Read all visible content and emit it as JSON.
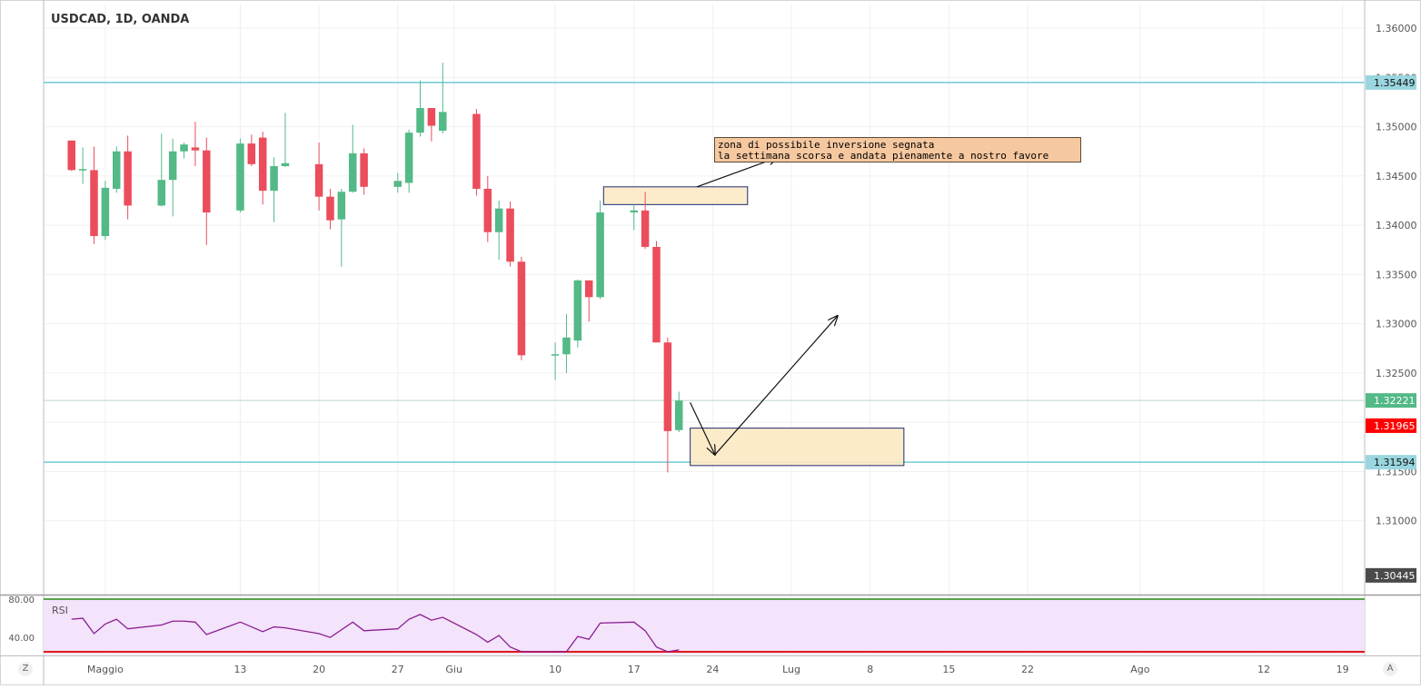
{
  "header": {
    "title": "USDCAD, 1D, OANDA"
  },
  "annotation": {
    "line1": "zona di possibile inversione segnata",
    "line2": "la settimana scorsa e andata pienamente a nostro favore"
  },
  "corner": {
    "left": "Z",
    "right": "A"
  },
  "rsi": {
    "label": "RSI",
    "ticks": [
      "80.00",
      "40.00"
    ],
    "values": [
      59,
      60,
      44,
      54,
      59,
      49,
      53,
      57,
      57,
      56,
      43,
      56,
      51,
      46,
      51,
      50,
      44,
      40,
      48,
      56,
      47,
      49,
      59,
      64,
      58,
      61,
      43,
      35,
      42,
      30,
      22,
      22,
      25,
      41,
      38,
      55,
      56,
      47,
      30,
      23,
      27
    ]
  },
  "colors": {
    "up": "#53b987",
    "down": "#eb4d5c",
    "hline": "#6ec9d6",
    "zone_fill": "#fce9c3",
    "zone_border": "#1f2a6e",
    "rsi_bg": "#f3e3fb",
    "rsi_line": "#8a1e8f"
  },
  "chart_data": {
    "type": "candlestick",
    "symbol": "USDCAD",
    "timeframe": "1D",
    "source": "OANDA",
    "ylim": [
      1.3025,
      1.3625
    ],
    "y_ticks": [
      "1.36000",
      "1.35500",
      "1.35000",
      "1.34500",
      "1.34000",
      "1.33500",
      "1.33000",
      "1.32500",
      "1.32000",
      "1.31500",
      "1.31000"
    ],
    "x_ticks": [
      {
        "label": "Maggio",
        "day": 1
      },
      {
        "label": "13",
        "day": 13
      },
      {
        "label": "20",
        "day": 20
      },
      {
        "label": "27",
        "day": 27
      },
      {
        "label": "Giu",
        "day": 32
      },
      {
        "label": "10",
        "day": 41
      },
      {
        "label": "17",
        "day": 48
      },
      {
        "label": "24",
        "day": 55
      },
      {
        "label": "Lug",
        "day": 62
      },
      {
        "label": "8",
        "day": 69
      },
      {
        "label": "15",
        "day": 76
      },
      {
        "label": "22",
        "day": 83
      },
      {
        "label": "Ago",
        "day": 93
      },
      {
        "label": "12",
        "day": 104
      },
      {
        "label": "19",
        "day": 111
      }
    ],
    "candles": [
      {
        "day": -2,
        "o": 1.3486,
        "h": 1.3486,
        "l": 1.3455,
        "c": 1.3456
      },
      {
        "day": -1,
        "o": 1.3456,
        "h": 1.3479,
        "l": 1.3442,
        "c": 1.3457
      },
      {
        "day": 0,
        "o": 1.3456,
        "h": 1.348,
        "l": 1.3381,
        "c": 1.3389
      },
      {
        "day": 1,
        "o": 1.3389,
        "h": 1.3445,
        "l": 1.3385,
        "c": 1.3438
      },
      {
        "day": 2,
        "o": 1.3437,
        "h": 1.348,
        "l": 1.3433,
        "c": 1.3475
      },
      {
        "day": 3,
        "o": 1.3475,
        "h": 1.3491,
        "l": 1.3406,
        "c": 1.342
      },
      {
        "day": 6,
        "o": 1.342,
        "h": 1.3493,
        "l": 1.3419,
        "c": 1.3446
      },
      {
        "day": 7,
        "o": 1.3446,
        "h": 1.3488,
        "l": 1.3409,
        "c": 1.3475
      },
      {
        "day": 8,
        "o": 1.3475,
        "h": 1.3484,
        "l": 1.3468,
        "c": 1.3482
      },
      {
        "day": 9,
        "o": 1.3479,
        "h": 1.3505,
        "l": 1.346,
        "c": 1.3476
      },
      {
        "day": 10,
        "o": 1.3476,
        "h": 1.3489,
        "l": 1.338,
        "c": 1.3413
      },
      {
        "day": 13,
        "o": 1.3415,
        "h": 1.3488,
        "l": 1.3413,
        "c": 1.3483
      },
      {
        "day": 14,
        "o": 1.3483,
        "h": 1.3492,
        "l": 1.346,
        "c": 1.3462
      },
      {
        "day": 15,
        "o": 1.3489,
        "h": 1.3495,
        "l": 1.3421,
        "c": 1.3435
      },
      {
        "day": 16,
        "o": 1.3435,
        "h": 1.3469,
        "l": 1.3403,
        "c": 1.346
      },
      {
        "day": 17,
        "o": 1.346,
        "h": 1.3514,
        "l": 1.3459,
        "c": 1.3463
      },
      {
        "day": 20,
        "o": 1.3462,
        "h": 1.3484,
        "l": 1.3415,
        "c": 1.3429
      },
      {
        "day": 21,
        "o": 1.3429,
        "h": 1.3437,
        "l": 1.3396,
        "c": 1.3405
      },
      {
        "day": 22,
        "o": 1.3406,
        "h": 1.3437,
        "l": 1.3358,
        "c": 1.3434
      },
      {
        "day": 23,
        "o": 1.3434,
        "h": 1.3502,
        "l": 1.3433,
        "c": 1.3473
      },
      {
        "day": 24,
        "o": 1.3473,
        "h": 1.3478,
        "l": 1.3431,
        "c": 1.3439
      },
      {
        "day": 27,
        "o": 1.3439,
        "h": 1.3453,
        "l": 1.3433,
        "c": 1.3445
      },
      {
        "day": 28,
        "o": 1.3443,
        "h": 1.3497,
        "l": 1.3433,
        "c": 1.3494
      },
      {
        "day": 29,
        "o": 1.3494,
        "h": 1.3547,
        "l": 1.349,
        "c": 1.3519
      },
      {
        "day": 30,
        "o": 1.3519,
        "h": 1.3519,
        "l": 1.3485,
        "c": 1.3501
      },
      {
        "day": 31,
        "o": 1.3496,
        "h": 1.3565,
        "l": 1.3493,
        "c": 1.3515
      },
      {
        "day": 34,
        "o": 1.3513,
        "h": 1.3518,
        "l": 1.343,
        "c": 1.3437
      },
      {
        "day": 35,
        "o": 1.3437,
        "h": 1.345,
        "l": 1.3383,
        "c": 1.3393
      },
      {
        "day": 36,
        "o": 1.3393,
        "h": 1.3425,
        "l": 1.3365,
        "c": 1.3417
      },
      {
        "day": 37,
        "o": 1.3417,
        "h": 1.3424,
        "l": 1.3358,
        "c": 1.3363
      },
      {
        "day": 38,
        "o": 1.3363,
        "h": 1.3368,
        "l": 1.3263,
        "c": 1.3268
      },
      {
        "day": 41,
        "o": 1.3269,
        "h": 1.3281,
        "l": 1.3243,
        "c": 1.3269
      },
      {
        "day": 42,
        "o": 1.3269,
        "h": 1.331,
        "l": 1.325,
        "c": 1.3286
      },
      {
        "day": 43,
        "o": 1.3283,
        "h": 1.3345,
        "l": 1.3276,
        "c": 1.3344
      },
      {
        "day": 44,
        "o": 1.3344,
        "h": 1.3344,
        "l": 1.3302,
        "c": 1.3327
      },
      {
        "day": 45,
        "o": 1.3327,
        "h": 1.3425,
        "l": 1.3325,
        "c": 1.3413
      },
      {
        "day": 48,
        "o": 1.3413,
        "h": 1.3421,
        "l": 1.3395,
        "c": 1.3415
      },
      {
        "day": 49,
        "o": 1.3415,
        "h": 1.3434,
        "l": 1.3376,
        "c": 1.3378
      },
      {
        "day": 50,
        "o": 1.3378,
        "h": 1.3384,
        "l": 1.3281,
        "c": 1.3281
      },
      {
        "day": 51,
        "o": 1.3281,
        "h": 1.3286,
        "l": 1.3149,
        "c": 1.3191
      },
      {
        "day": 52,
        "o": 1.3192,
        "h": 1.3231,
        "l": 1.319,
        "c": 1.3222
      }
    ],
    "horizontal_lines": [
      {
        "price": 1.35449,
        "label": "1.35449"
      },
      {
        "price": 1.31594,
        "label": "1.31594"
      }
    ],
    "price_tags": [
      {
        "price": 1.32221,
        "label": "1.32221",
        "kind": "last"
      },
      {
        "price": 1.31965,
        "label": "1.31965",
        "kind": "countdown"
      },
      {
        "price": 1.30445,
        "label": "1.30445",
        "kind": "low"
      }
    ],
    "zones": [
      {
        "day_from": 45.3,
        "day_to": 58.1,
        "price_from": 1.3439,
        "price_to": 1.3421
      },
      {
        "day_from": 53.0,
        "day_to": 72.0,
        "price_from": 1.3194,
        "price_to": 1.3156
      }
    ],
    "arrows": [
      {
        "from": {
          "day": 53.6,
          "price": 1.3439
        },
        "to": {
          "day": 60.8,
          "price": 1.3469
        }
      },
      {
        "from": {
          "day": 53.0,
          "price": 1.322
        },
        "to": {
          "day": 55.2,
          "price": 1.3167
        }
      },
      {
        "from": {
          "day": 55.2,
          "price": 1.3167
        },
        "to": {
          "day": 66.1,
          "price": 1.3308
        }
      }
    ]
  }
}
